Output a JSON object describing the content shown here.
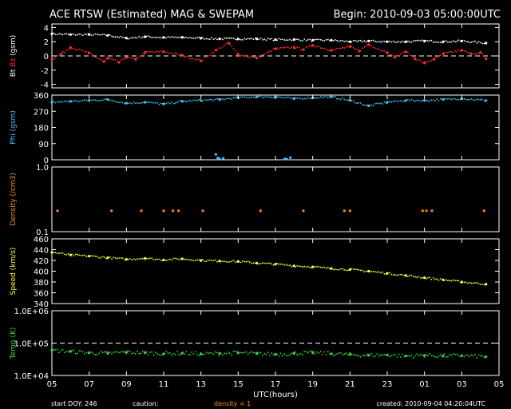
{
  "header": {
    "title": "ACE RTSW (Estimated) MAG & SWEPAM",
    "begin": "Begin: 2010-09-03 05:00:00UTC"
  },
  "footer": {
    "start_doy": "start DOY: 246",
    "caution_label": "caution:",
    "caution_value": "density < 1",
    "created": "created: 2010-09-04 04:20:04UTC",
    "xlabel": "UTC(hours)"
  },
  "colors": {
    "bt": "#ffffff",
    "bz": "#ff2a2a",
    "phi": "#3fc8ff",
    "density": "#ff8c1a",
    "speed": "#ffff33",
    "temp": "#33dd33",
    "frame": "#ffffff"
  },
  "chart_data": [
    {
      "type": "scatter",
      "panel": "mag",
      "ylabel_parts": [
        "Bt",
        "Bz",
        "(gsm)"
      ],
      "yticks": [
        "4",
        "2",
        "0",
        "-2",
        "-4"
      ],
      "ylim": [
        -4.5,
        4.5
      ],
      "xlim": [
        0,
        24
      ],
      "xticks": [
        "05",
        "07",
        "09",
        "11",
        "13",
        "15",
        "17",
        "19",
        "21",
        "23",
        "01",
        "03",
        "05"
      ],
      "dashed_line": 0,
      "series": [
        {
          "name": "Bt",
          "color": "#ffffff",
          "x": [
            0,
            1,
            2,
            3,
            4,
            5,
            6,
            7,
            8,
            9,
            10,
            11,
            12,
            13,
            14,
            15,
            16,
            17,
            18,
            19,
            20,
            21,
            22,
            23.3
          ],
          "y": [
            3.1,
            3.0,
            3.0,
            2.9,
            2.5,
            2.7,
            2.6,
            2.6,
            2.5,
            2.4,
            2.4,
            2.4,
            2.3,
            2.3,
            2.2,
            2.2,
            2.0,
            2.1,
            2.0,
            2.0,
            2.1,
            2.0,
            2.1,
            1.8
          ]
        },
        {
          "name": "Bz",
          "color": "#ff2a2a",
          "x": [
            0,
            0.5,
            1,
            2,
            2.8,
            3,
            3.6,
            4,
            4.5,
            5,
            6,
            7,
            8,
            8.8,
            9.5,
            10,
            11,
            12,
            13,
            13.5,
            14,
            15,
            16,
            16.5,
            17,
            18,
            18.4,
            19,
            19.5,
            20,
            20.5,
            21,
            22,
            22.5,
            23,
            23.3
          ],
          "y": [
            -0.5,
            0.3,
            1.2,
            0.4,
            -0.8,
            -0.3,
            -0.9,
            -0.2,
            -0.5,
            0.5,
            0.6,
            0.1,
            -0.7,
            0.8,
            1.8,
            0.2,
            -0.3,
            1.0,
            1.2,
            0.9,
            1.5,
            0.8,
            1.3,
            0.7,
            1.6,
            0.5,
            -0.2,
            0.6,
            -0.4,
            -1.0,
            -0.5,
            0.3,
            0.8,
            0.3,
            0.5,
            -0.4
          ]
        }
      ]
    },
    {
      "type": "scatter",
      "panel": "phi",
      "ylabel": "Phi (gsm)",
      "yticks": [
        "360",
        "270",
        "180",
        "90",
        "0"
      ],
      "ylim": [
        0,
        360
      ],
      "series": [
        {
          "name": "Phi",
          "color": "#3fc8ff",
          "x": [
            0,
            1,
            2,
            3,
            4,
            5,
            6,
            7,
            8,
            9,
            10,
            11,
            12,
            13,
            14,
            15,
            16,
            17,
            18,
            19,
            20,
            21,
            22,
            23.3
          ],
          "y": [
            320,
            325,
            330,
            335,
            315,
            320,
            310,
            325,
            330,
            335,
            345,
            350,
            350,
            340,
            345,
            350,
            330,
            300,
            320,
            330,
            330,
            335,
            340,
            330
          ]
        },
        {
          "name": "Phi-low",
          "color": "#3fc8ff",
          "x": [
            8.8,
            8.9,
            9.0,
            9.2,
            12.5,
            12.6,
            12.8
          ],
          "y": [
            30,
            10,
            5,
            8,
            5,
            3,
            12
          ]
        }
      ]
    },
    {
      "type": "scatter",
      "panel": "density",
      "ylabel": "Density (/cm3)",
      "yticks": [
        "1.0",
        "0.1"
      ],
      "ylim": [
        0.1,
        1.0
      ],
      "scale": "log",
      "series": [
        {
          "name": "Density",
          "color": "#ff8c1a",
          "x": [
            0.3,
            3.2,
            4.8,
            6.0,
            6.5,
            6.8,
            8.1,
            11.2,
            13.5,
            15.7,
            16.0,
            19.9,
            20.1,
            20.4,
            23.2
          ],
          "y": [
            0.21,
            0.21,
            0.21,
            0.21,
            0.21,
            0.21,
            0.21,
            0.21,
            0.21,
            0.21,
            0.21,
            0.21,
            0.21,
            0.21,
            0.21
          ]
        }
      ]
    },
    {
      "type": "scatter",
      "panel": "speed",
      "ylabel": "Speed (km/s)",
      "yticks": [
        "460",
        "440",
        "420",
        "400",
        "380",
        "360",
        "340"
      ],
      "ylim": [
        340,
        460
      ],
      "series": [
        {
          "name": "Speed",
          "color": "#ffff33",
          "x": [
            0,
            1,
            2,
            3,
            4,
            5,
            6,
            7,
            8,
            9,
            10,
            11,
            12,
            13,
            14,
            15,
            16,
            17,
            18,
            19,
            20,
            21,
            22,
            23.3
          ],
          "y": [
            435,
            430,
            428,
            425,
            422,
            424,
            421,
            423,
            420,
            419,
            418,
            415,
            413,
            410,
            408,
            405,
            403,
            400,
            396,
            392,
            388,
            384,
            380,
            376
          ]
        }
      ]
    },
    {
      "type": "scatter",
      "panel": "temp",
      "ylabel": "Temp (K)",
      "yticks": [
        "1.0E+06",
        "1.0E+05",
        "1.0E+04"
      ],
      "ylim": [
        10000,
        1000000
      ],
      "scale": "log",
      "dashed_line": 100000,
      "series": [
        {
          "name": "Temp",
          "color": "#33dd33",
          "x": [
            0,
            1,
            2,
            3,
            4,
            5,
            6,
            7,
            8,
            9,
            10,
            11,
            12,
            13,
            14,
            15,
            16,
            17,
            18,
            19,
            20,
            21,
            22,
            23.3
          ],
          "y": [
            60000,
            55000,
            50000,
            48000,
            52000,
            50000,
            47000,
            49000,
            46000,
            48000,
            50000,
            47000,
            45000,
            48000,
            50000,
            47000,
            44000,
            42000,
            43000,
            40000,
            42000,
            40000,
            41000,
            38000
          ]
        }
      ]
    }
  ]
}
